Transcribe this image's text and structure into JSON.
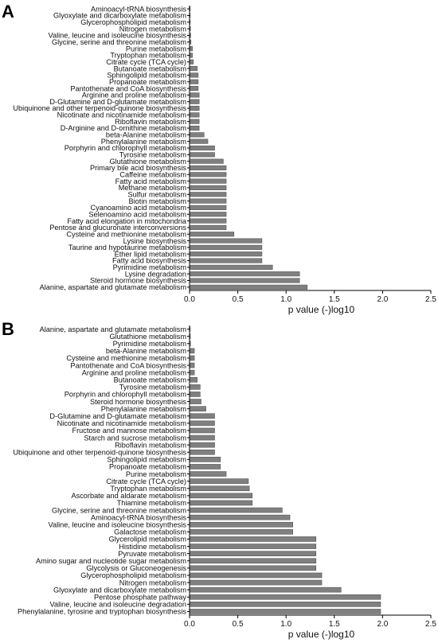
{
  "colors": {
    "bar_fill": "#808080",
    "bar_stroke": "#555555",
    "axis": "#000000"
  },
  "chart_data": [
    {
      "type": "bar",
      "orientation": "horizontal",
      "panel": "A",
      "xlabel": "p value (-)log10",
      "xlim": [
        0,
        2.5
      ],
      "xticks": [
        "0.0",
        "0.5",
        "1.0",
        "1.5",
        "2.0",
        "2.5"
      ],
      "grid": false,
      "categories": [
        "Aminoacyl-tRNA biosynthesis",
        "Glyoxylate and dicarboxylate metabolism",
        "Glycerophospholipid metabolism",
        "Nitrogen metabolism",
        "Valine, leucine and isoleucine biosynthesis",
        "Glycine, serine and threonine metabolism",
        "Purine metabolism",
        "Tryptophan metabolism",
        "Citrate cycle (TCA cycle)",
        "Butanoate metabolism",
        "Sphingolipid metabolism",
        "Propanoate metabolism",
        "Pantothenate and CoA biosynthesis",
        "Arginine and proline metabolism",
        "D-Glutamine and D-glutamate metabolism",
        "Ubiquinone and other terpenoid-quinone biosynthesis",
        "Nicotinate and nicotinamide metabolism",
        "Riboflavin metabolism",
        "D-Arginine and D-ornithine metabolism",
        "beta-Alanine metabolism",
        "Phenylalanine metabolism",
        "Porphyrin and chlorophyll metabolism",
        "Tyrosine metabolism",
        "Glutathione metabolism",
        "Primary bile acid biosynthesis",
        "Caffeine metabolism",
        "Fatty acid metabolism",
        "Methane metabolism",
        "Sulfur metabolism",
        "Biotin metabolism",
        "Cyanoamino acid metabolism",
        "Selenoamino acid metabolism",
        "Fatty acid elongation in mitochondria",
        "Pentose and glucuronate interconversions",
        "Cysteine and methionine metabolism",
        "Lysine biosynthesis",
        "Taurine and hypotaurine metabolism",
        "Ether lipid metabolism",
        "Fatty acid biosynthesis",
        "Pyrimidine metabolism",
        "Lysine degradation",
        "Steroid hormone biosynthesis",
        "Alanine, aspartate and glutamate metabolism"
      ],
      "values": [
        0.003,
        0.005,
        0.007,
        0.01,
        0.012,
        0.015,
        0.03,
        0.03,
        0.04,
        0.08,
        0.09,
        0.09,
        0.09,
        0.1,
        0.1,
        0.1,
        0.1,
        0.1,
        0.1,
        0.15,
        0.19,
        0.26,
        0.26,
        0.35,
        0.38,
        0.38,
        0.38,
        0.38,
        0.38,
        0.38,
        0.38,
        0.38,
        0.38,
        0.38,
        0.46,
        0.75,
        0.75,
        0.75,
        0.75,
        0.86,
        1.14,
        1.14,
        1.22
      ]
    },
    {
      "type": "bar",
      "orientation": "horizontal",
      "panel": "B",
      "xlabel": "p value (-)log10",
      "xlim": [
        0,
        2.5
      ],
      "xticks": [
        "0.0",
        "0.5",
        "1.0",
        "1.5",
        "2.0",
        "2.5"
      ],
      "grid": false,
      "categories": [
        "Alanine, aspartate and glutamate metabolism",
        "Glutathione metabolism",
        "Pyrimidine metabolism",
        "beta-Alanine metabolism",
        "Cysteine and methionine metabolism",
        "Pantothenate and CoA biosynthesis",
        "Arginine and proline metabolism",
        "Butanoate metabolism",
        "Tyrosine metabolism",
        "Porphyrin and chlorophyll metabolism",
        "Steroid hormone biosynthesis",
        "Phenylalanine metabolism",
        "D-Glutamine and D-glutamate metabolism",
        "Nicotinate and nicotinamide metabolism",
        "Fructose and mannose metabolism",
        "Starch and sucrose metabolism",
        "Riboflavin metabolism",
        "Ubiquinone and other terpenoid-quinone biosynthesis",
        "Sphingolipid metabolism",
        "Propanoate metabolism",
        "Purine metabolism",
        "Citrate cycle (TCA cycle)",
        "Tryptophan metabolism",
        "Ascorbate and aldarate metabolism",
        "Thiamine metabolism",
        "Glycine, serine and threonine metabolism",
        "Aminoacyl-tRNA biosynthesis",
        "Valine, leucine and isoleucine biosynthesis",
        "Galactose metabolism",
        "Glycerolipid metabolism",
        "Histidine metabolism",
        "Pyruvate metabolism",
        "Amino sugar and nucleotide sugar metabolism",
        "Glycolysis or Gluconeogenesis",
        "Glycerophospholipid metabolism",
        "Nitrogen metabolism",
        "Glyoxylate and dicarboxylate metabolism",
        "Pentose phosphate pathway",
        "Valine, leucine and isoleucine degradation",
        "Phenylalanine, tyrosine and tryptophan biosynthesis"
      ],
      "values": [
        0.005,
        0.008,
        0.01,
        0.05,
        0.05,
        0.05,
        0.05,
        0.08,
        0.11,
        0.11,
        0.12,
        0.17,
        0.26,
        0.26,
        0.26,
        0.26,
        0.26,
        0.26,
        0.32,
        0.32,
        0.38,
        0.61,
        0.62,
        0.65,
        0.65,
        0.96,
        1.04,
        1.07,
        1.07,
        1.31,
        1.31,
        1.31,
        1.31,
        1.31,
        1.37,
        1.37,
        1.57,
        1.98,
        1.98,
        1.98
      ]
    }
  ]
}
